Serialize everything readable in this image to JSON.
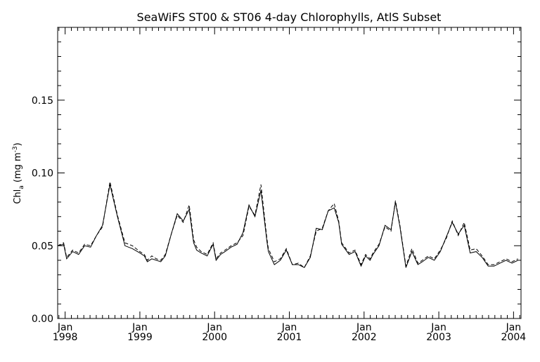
{
  "chart_data": {
    "type": "line",
    "title": "SeaWiFS ST00 & ST06 4-day Chlorophylls, AtlS Subset",
    "xlabel": "",
    "ylabel": {
      "main": "Chl",
      "sub": "a",
      "unit_open": " (mg m",
      "unit_sup": "-3",
      "unit_close": ")"
    },
    "x_unit": "year",
    "xlim": [
      1997.9,
      2004.1
    ],
    "ylim": [
      0,
      0.2
    ],
    "y_ticks": [
      {
        "value": 0.0,
        "label": "0.00"
      },
      {
        "value": 0.05,
        "label": "0.05"
      },
      {
        "value": 0.1,
        "label": "0.10"
      },
      {
        "value": 0.15,
        "label": "0.15"
      }
    ],
    "x_ticks": [
      {
        "value": 1998,
        "month": "Jan",
        "year": "1998"
      },
      {
        "value": 1999,
        "month": "Jan",
        "year": "1999"
      },
      {
        "value": 2000,
        "month": "Jan",
        "year": "2000"
      },
      {
        "value": 2001,
        "month": "Jan",
        "year": "2001"
      },
      {
        "value": 2002,
        "month": "Jan",
        "year": "2002"
      },
      {
        "value": 2003,
        "month": "Jan",
        "year": "2003"
      },
      {
        "value": 2004,
        "month": "Jan",
        "year": "2004"
      }
    ],
    "grid": false,
    "legend": "none",
    "colors": {
      "line": "#000000",
      "axes": "#000000",
      "background": "#ffffff"
    },
    "series": [
      {
        "style": "solid",
        "x": [
          1997.9,
          1997.98,
          1998.02,
          1998.1,
          1998.18,
          1998.26,
          1998.34,
          1998.42,
          1998.5,
          1998.6,
          1998.7,
          1998.8,
          1998.9,
          1999.0,
          1999.06,
          1999.1,
          1999.16,
          1999.22,
          1999.28,
          1999.34,
          1999.42,
          1999.5,
          1999.58,
          1999.66,
          1999.72,
          1999.76,
          1999.82,
          1999.9,
          1999.98,
          2000.02,
          2000.08,
          2000.14,
          2000.22,
          2000.3,
          2000.38,
          2000.46,
          2000.54,
          2000.62,
          2000.7,
          2000.72,
          2000.8,
          2000.88,
          2000.96,
          2001.04,
          2001.12,
          2001.2,
          2001.28,
          2001.36,
          2001.44,
          2001.52,
          2001.6,
          2001.66,
          2001.7,
          2001.8,
          2001.88,
          2001.96,
          2002.02,
          2002.08,
          2002.12,
          2002.2,
          2002.28,
          2002.36,
          2002.42,
          2002.48,
          2002.56,
          2002.64,
          2002.72,
          2002.78,
          2002.86,
          2002.94,
          2003.02,
          2003.1,
          2003.18,
          2003.26,
          2003.34,
          2003.42,
          2003.5,
          2003.58,
          2003.66,
          2003.74,
          2003.82,
          2003.9,
          2003.98,
          2004.06
        ],
        "y": [
          0.05,
          0.051,
          0.041,
          0.046,
          0.044,
          0.05,
          0.049,
          0.057,
          0.064,
          0.092,
          0.07,
          0.05,
          0.048,
          0.045,
          0.043,
          0.039,
          0.041,
          0.04,
          0.039,
          0.043,
          0.058,
          0.072,
          0.067,
          0.075,
          0.052,
          0.047,
          0.045,
          0.043,
          0.051,
          0.04,
          0.044,
          0.046,
          0.049,
          0.051,
          0.059,
          0.078,
          0.07,
          0.088,
          0.053,
          0.046,
          0.037,
          0.04,
          0.047,
          0.037,
          0.037,
          0.035,
          0.042,
          0.062,
          0.061,
          0.074,
          0.076,
          0.066,
          0.051,
          0.044,
          0.046,
          0.036,
          0.043,
          0.04,
          0.044,
          0.05,
          0.064,
          0.061,
          0.08,
          0.063,
          0.035,
          0.046,
          0.037,
          0.039,
          0.042,
          0.04,
          0.046,
          0.056,
          0.066,
          0.058,
          0.064,
          0.045,
          0.046,
          0.042,
          0.036,
          0.036,
          0.038,
          0.04,
          0.038,
          0.04
        ]
      },
      {
        "style": "dashed",
        "x": [
          1997.9,
          1997.98,
          1998.02,
          1998.1,
          1998.18,
          1998.26,
          1998.34,
          1998.42,
          1998.5,
          1998.6,
          1998.7,
          1998.8,
          1998.9,
          1999.0,
          1999.06,
          1999.1,
          1999.16,
          1999.22,
          1999.28,
          1999.34,
          1999.42,
          1999.5,
          1999.58,
          1999.66,
          1999.72,
          1999.76,
          1999.82,
          1999.9,
          1999.98,
          2000.02,
          2000.08,
          2000.14,
          2000.22,
          2000.3,
          2000.38,
          2000.46,
          2000.54,
          2000.62,
          2000.7,
          2000.72,
          2000.8,
          2000.88,
          2000.96,
          2001.04,
          2001.12,
          2001.2,
          2001.28,
          2001.36,
          2001.44,
          2001.52,
          2001.6,
          2001.66,
          2001.7,
          2001.8,
          2001.88,
          2001.96,
          2002.02,
          2002.08,
          2002.12,
          2002.2,
          2002.28,
          2002.36,
          2002.42,
          2002.48,
          2002.56,
          2002.64,
          2002.72,
          2002.78,
          2002.86,
          2002.94,
          2003.02,
          2003.1,
          2003.18,
          2003.26,
          2003.34,
          2003.42,
          2003.5,
          2003.58,
          2003.66,
          2003.74,
          2003.82,
          2003.9,
          2003.98,
          2004.06
        ],
        "y": [
          0.05,
          0.052,
          0.042,
          0.047,
          0.045,
          0.051,
          0.05,
          0.057,
          0.063,
          0.094,
          0.071,
          0.052,
          0.05,
          0.046,
          0.044,
          0.04,
          0.043,
          0.041,
          0.04,
          0.044,
          0.058,
          0.071,
          0.066,
          0.078,
          0.054,
          0.049,
          0.046,
          0.044,
          0.052,
          0.041,
          0.045,
          0.047,
          0.05,
          0.052,
          0.057,
          0.077,
          0.071,
          0.092,
          0.055,
          0.048,
          0.039,
          0.041,
          0.048,
          0.037,
          0.038,
          0.035,
          0.043,
          0.06,
          0.062,
          0.074,
          0.079,
          0.067,
          0.052,
          0.045,
          0.047,
          0.037,
          0.044,
          0.041,
          0.045,
          0.051,
          0.063,
          0.06,
          0.081,
          0.064,
          0.036,
          0.048,
          0.038,
          0.04,
          0.043,
          0.041,
          0.047,
          0.055,
          0.067,
          0.057,
          0.066,
          0.047,
          0.048,
          0.043,
          0.037,
          0.037,
          0.039,
          0.041,
          0.039,
          0.041
        ]
      }
    ]
  }
}
